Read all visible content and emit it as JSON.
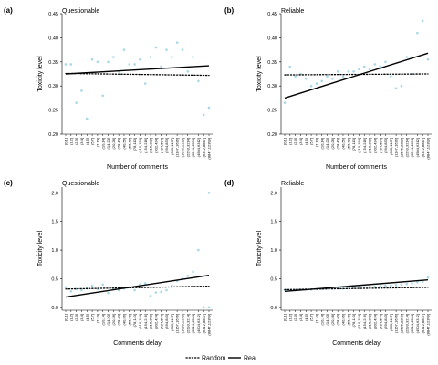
{
  "legend": {
    "items": [
      {
        "label": "Random",
        "style": "dotted"
      },
      {
        "label": "Real",
        "style": "solid"
      }
    ],
    "placement": "bottom-center"
  },
  "colors": {
    "points": "#a8d8e8",
    "lines": "#000000",
    "background": "#ffffff"
  },
  "chart_data": [
    {
      "type": "scatter",
      "panel_label": "(a)",
      "title": "Questionable",
      "xlabel": "Number of comments",
      "ylabel": "Toxicity level",
      "ylim": [
        0.2,
        0.45
      ],
      "yticks": [
        0.2,
        0.25,
        0.3,
        0.35,
        0.4,
        0.45
      ],
      "ytick_labels": [
        "0.20",
        "0.25",
        "0.30",
        "0.35",
        "0.40",
        "0.45"
      ],
      "categories": [
        "[0,1]",
        "(1,2]",
        "(2,3]",
        "(3,4]",
        "(4,5]",
        "(5,7]",
        "(7,10]",
        "(10,14]",
        "(14,20]",
        "(20,28]",
        "(28,40]",
        "(40,56]",
        "(56,78]",
        "(78,110]",
        "(110,154]",
        "(154,216]",
        "(216,302]",
        "(302,424]",
        "(424,594]",
        "(594,833]",
        "(833,1167]",
        "(1167,1636]",
        "(1636,2293]",
        "(2293,3214]",
        "(3214,4504]",
        "(4504,6312]",
        "(6312,8847]",
        "(8847,12399]"
      ],
      "values": [
        0.345,
        0.345,
        0.265,
        0.29,
        0.232,
        0.355,
        0.35,
        0.28,
        0.35,
        0.36,
        0.33,
        0.375,
        0.345,
        0.345,
        0.355,
        0.305,
        0.36,
        0.38,
        0.34,
        0.375,
        0.36,
        0.39,
        0.375,
        0.33,
        0.36,
        0.31,
        0.24,
        0.255
      ],
      "lines": [
        {
          "name": "Random",
          "style": "dotted",
          "x": [
            1,
            28
          ],
          "y": [
            0.326,
            0.322
          ]
        },
        {
          "name": "Real",
          "style": "solid",
          "x": [
            1,
            28
          ],
          "y": [
            0.325,
            0.342
          ]
        }
      ],
      "grid": false
    },
    {
      "type": "scatter",
      "panel_label": "(b)",
      "title": "Reliable",
      "xlabel": "Number of comments",
      "ylabel": "Toxicity level",
      "ylim": [
        0.2,
        0.45
      ],
      "yticks": [
        0.2,
        0.25,
        0.3,
        0.35,
        0.4,
        0.45
      ],
      "ytick_labels": [
        "0.20",
        "0.25",
        "0.30",
        "0.35",
        "0.40",
        "0.45"
      ],
      "categories": [
        "[0,1]",
        "(1,2]",
        "(2,3]",
        "(3,4]",
        "(4,5]",
        "(5,7]",
        "(7,10]",
        "(10,14]",
        "(14,20]",
        "(20,28]",
        "(28,40]",
        "(40,56]",
        "(56,78]",
        "(78,110]",
        "(110,154]",
        "(154,216]",
        "(216,302]",
        "(302,424]",
        "(424,594]",
        "(594,833]",
        "(833,1167]",
        "(1167,1636]",
        "(1636,2293]",
        "(2293,3214]",
        "(3214,4504]",
        "(4504,6312]",
        "(6312,8847]",
        "(8847,12399]"
      ],
      "values": [
        0.265,
        0.34,
        0.32,
        0.325,
        0.315,
        0.3,
        0.305,
        0.31,
        0.32,
        0.315,
        0.33,
        0.32,
        0.33,
        0.33,
        0.335,
        0.34,
        0.335,
        0.345,
        0.34,
        0.35,
        0.32,
        0.295,
        0.3,
        0.36,
        0.325,
        0.41,
        0.435,
        0.355
      ],
      "lines": [
        {
          "name": "Random",
          "style": "dotted",
          "x": [
            1,
            28
          ],
          "y": [
            0.323,
            0.325
          ]
        },
        {
          "name": "Real",
          "style": "solid",
          "x": [
            1,
            28
          ],
          "y": [
            0.275,
            0.368
          ]
        }
      ],
      "grid": false
    },
    {
      "type": "scatter",
      "panel_label": "(c)",
      "title": "Questionable",
      "xlabel": "Comments delay",
      "ylabel": "Toxicity level",
      "ylim": [
        -0.05,
        2.1
      ],
      "yticks": [
        0.0,
        0.5,
        1.0,
        1.5,
        2.0
      ],
      "ytick_labels": [
        "0.0",
        "0.5",
        "1.0",
        "1.5",
        "2.0"
      ],
      "categories": [
        "[0,1]",
        "(1,2]",
        "(2,3]",
        "(3,4]",
        "(4,5]",
        "(5,7]",
        "(7,10]",
        "(10,14]",
        "(14,20]",
        "(20,28]",
        "(28,40]",
        "(40,56]",
        "(56,78]",
        "(78,110]",
        "(110,154]",
        "(154,216]",
        "(216,302]",
        "(302,424]",
        "(424,594]",
        "(594,833]",
        "(833,1167]",
        "(1167,1636]",
        "(1636,2293]",
        "(2293,3214]",
        "(3214,4504]",
        "(4504,6312]",
        "(6312,8847]",
        "(8847,12399]"
      ],
      "values": [
        0.35,
        0.28,
        0.32,
        0.3,
        0.33,
        0.38,
        0.32,
        0.4,
        0.25,
        0.33,
        0.3,
        0.33,
        0.35,
        0.3,
        0.4,
        0.42,
        0.2,
        0.26,
        0.27,
        0.3,
        0.38,
        0.46,
        0.5,
        0.55,
        0.62,
        1.0,
        0.0,
        2.0
      ],
      "extra_points": [
        {
          "x": 27,
          "y": 0.0
        },
        {
          "x": 28,
          "y": 0.0
        }
      ],
      "lines": [
        {
          "name": "Random",
          "style": "dotted",
          "x": [
            1,
            28
          ],
          "y": [
            0.32,
            0.37
          ]
        },
        {
          "name": "Real",
          "style": "solid",
          "x": [
            1,
            28
          ],
          "y": [
            0.18,
            0.56
          ]
        }
      ],
      "grid": false
    },
    {
      "type": "scatter",
      "panel_label": "(d)",
      "title": "Reliable",
      "xlabel": "Comments delay",
      "ylabel": "Toxicity level",
      "ylim": [
        -0.05,
        2.1
      ],
      "yticks": [
        0.0,
        0.5,
        1.0,
        1.5,
        2.0
      ],
      "ytick_labels": [
        "0.0",
        "0.5",
        "1.0",
        "1.5",
        "2.0"
      ],
      "categories": [
        "[0,1]",
        "(1,2]",
        "(2,3]",
        "(3,4]",
        "(4,5]",
        "(5,7]",
        "(7,10]",
        "(10,14]",
        "(14,20]",
        "(20,28]",
        "(28,40]",
        "(40,56]",
        "(56,78]",
        "(78,110]",
        "(110,154]",
        "(154,216]",
        "(216,302]",
        "(302,424]",
        "(424,594]",
        "(594,833]",
        "(833,1167]",
        "(1167,1636]",
        "(1636,2293]",
        "(2293,3214]",
        "(3214,4504]",
        "(4504,6312]",
        "(6312,8847]",
        "(8847,12399]"
      ],
      "values": [
        0.3,
        0.3,
        0.3,
        0.31,
        0.31,
        0.31,
        0.32,
        0.32,
        0.33,
        0.33,
        0.34,
        0.33,
        0.34,
        0.34,
        0.35,
        0.35,
        0.36,
        0.36,
        0.37,
        0.38,
        0.38,
        0.39,
        0.4,
        0.41,
        0.42,
        0.44,
        0.45,
        0.52
      ],
      "lines": [
        {
          "name": "Random",
          "style": "dotted",
          "x": [
            1,
            28
          ],
          "y": [
            0.31,
            0.35
          ]
        },
        {
          "name": "Real",
          "style": "solid",
          "x": [
            1,
            28
          ],
          "y": [
            0.28,
            0.48
          ]
        }
      ],
      "grid": false
    }
  ]
}
